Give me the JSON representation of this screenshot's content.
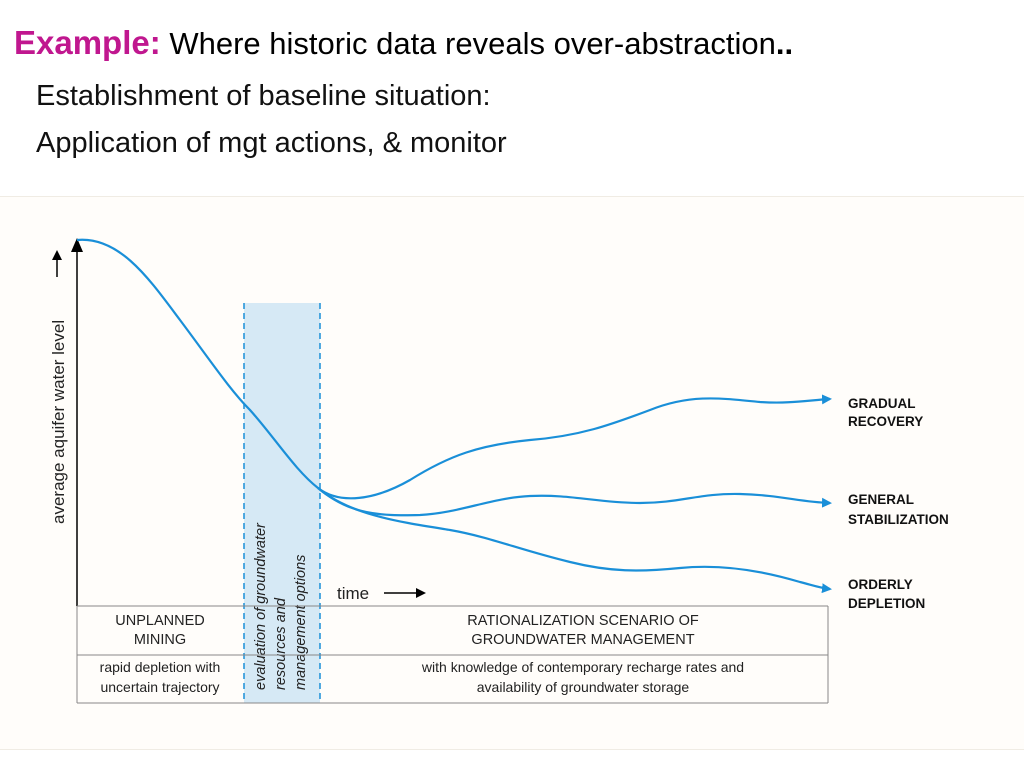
{
  "header": {
    "label": "Example:",
    "title": "Where historic data reveals over-abstraction",
    "title_suffix": "..",
    "line1": "Establishment of baseline situation:",
    "line2": "Application of mgt actions, & monitor"
  },
  "diagram": {
    "y_axis_label": "average aquifer water level",
    "time_label": "time",
    "evaluation_band": [
      "evaluation of groundwater",
      "resources and",
      "management options"
    ],
    "outcomes": {
      "recovery": [
        "GRADUAL",
        "RECOVERY"
      ],
      "stabilization": [
        "GENERAL",
        "STABILIZATION"
      ],
      "depletion": [
        "ORDERLY",
        "DEPLETION"
      ]
    },
    "table": {
      "unplanned_title": [
        "UNPLANNED",
        "MINING"
      ],
      "unplanned_desc": [
        "rapid depletion with",
        "uncertain trajectory"
      ],
      "rational_title": [
        "RATIONALIZATION SCENARIO OF",
        "GROUNDWATER MANAGEMENT"
      ],
      "rational_desc": [
        "with knowledge of contemporary  recharge rates and",
        "availability of groundwater storage"
      ]
    },
    "colors": {
      "curve": "#1a8fd8",
      "band_fill": "#d6e9f5",
      "band_border": "#1a8fd8",
      "title_accent": "#c0178f"
    }
  }
}
